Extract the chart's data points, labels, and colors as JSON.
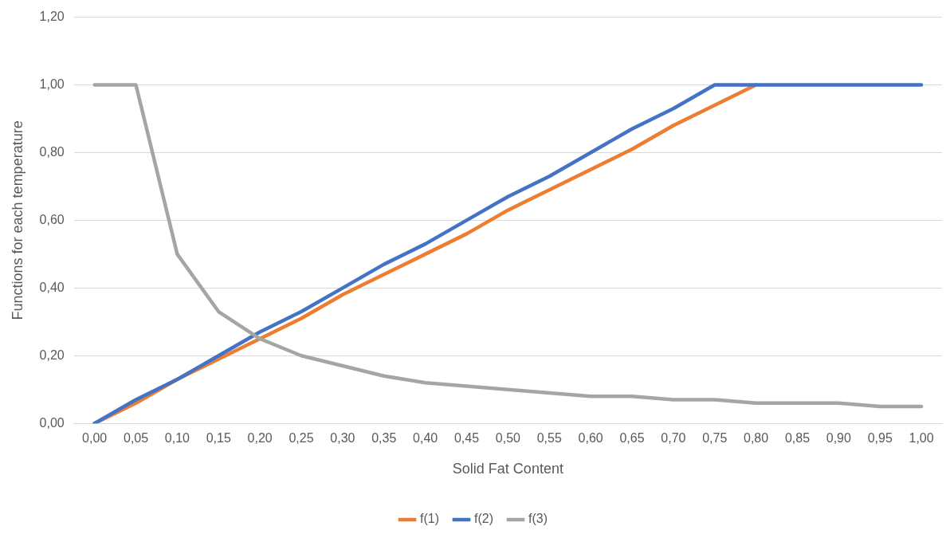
{
  "chart_data": {
    "type": "line",
    "xlabel": "Solid Fat Content",
    "ylabel": "Functions for each temperature",
    "categories": [
      "0,00",
      "0,05",
      "0,10",
      "0,15",
      "0,20",
      "0,25",
      "0,30",
      "0,35",
      "0,40",
      "0,45",
      "0,50",
      "0,55",
      "0,60",
      "0,65",
      "0,70",
      "0,75",
      "0,80",
      "0,85",
      "0,90",
      "0,95",
      "1,00"
    ],
    "series": [
      {
        "name": "f(1)",
        "color": "#ed7d31",
        "values": [
          0,
          0.06,
          0.13,
          0.19,
          0.25,
          0.31,
          0.38,
          0.44,
          0.5,
          0.56,
          0.63,
          0.69,
          0.75,
          0.81,
          0.88,
          0.94,
          1,
          null,
          null,
          null,
          null
        ]
      },
      {
        "name": "f(2)",
        "color": "#4472c4",
        "values": [
          0,
          0.07,
          0.13,
          0.2,
          0.27,
          0.33,
          0.4,
          0.47,
          0.53,
          0.6,
          0.67,
          0.73,
          0.8,
          0.87,
          0.93,
          1,
          1,
          1,
          1,
          1,
          1
        ]
      },
      {
        "name": "f(3)",
        "color": "#a5a5a5",
        "values": [
          1,
          1,
          0.5,
          0.33,
          0.25,
          0.2,
          0.17,
          0.14,
          0.12,
          0.11,
          0.1,
          0.09,
          0.08,
          0.08,
          0.07,
          0.07,
          0.06,
          0.06,
          0.06,
          0.05,
          0.05
        ]
      }
    ],
    "ylim": [
      0,
      1.2
    ],
    "yticks": [
      {
        "value": 0,
        "label": "0,00"
      },
      {
        "value": 0.2,
        "label": "0,20"
      },
      {
        "value": 0.4,
        "label": "0,40"
      },
      {
        "value": 0.6,
        "label": "0,60"
      },
      {
        "value": 0.8,
        "label": "0,80"
      },
      {
        "value": 1,
        "label": "1,00"
      },
      {
        "value": 1.2,
        "label": "1,20"
      }
    ],
    "grid": "y",
    "legend": "bottom",
    "marker": "none",
    "line_style": "solid"
  }
}
